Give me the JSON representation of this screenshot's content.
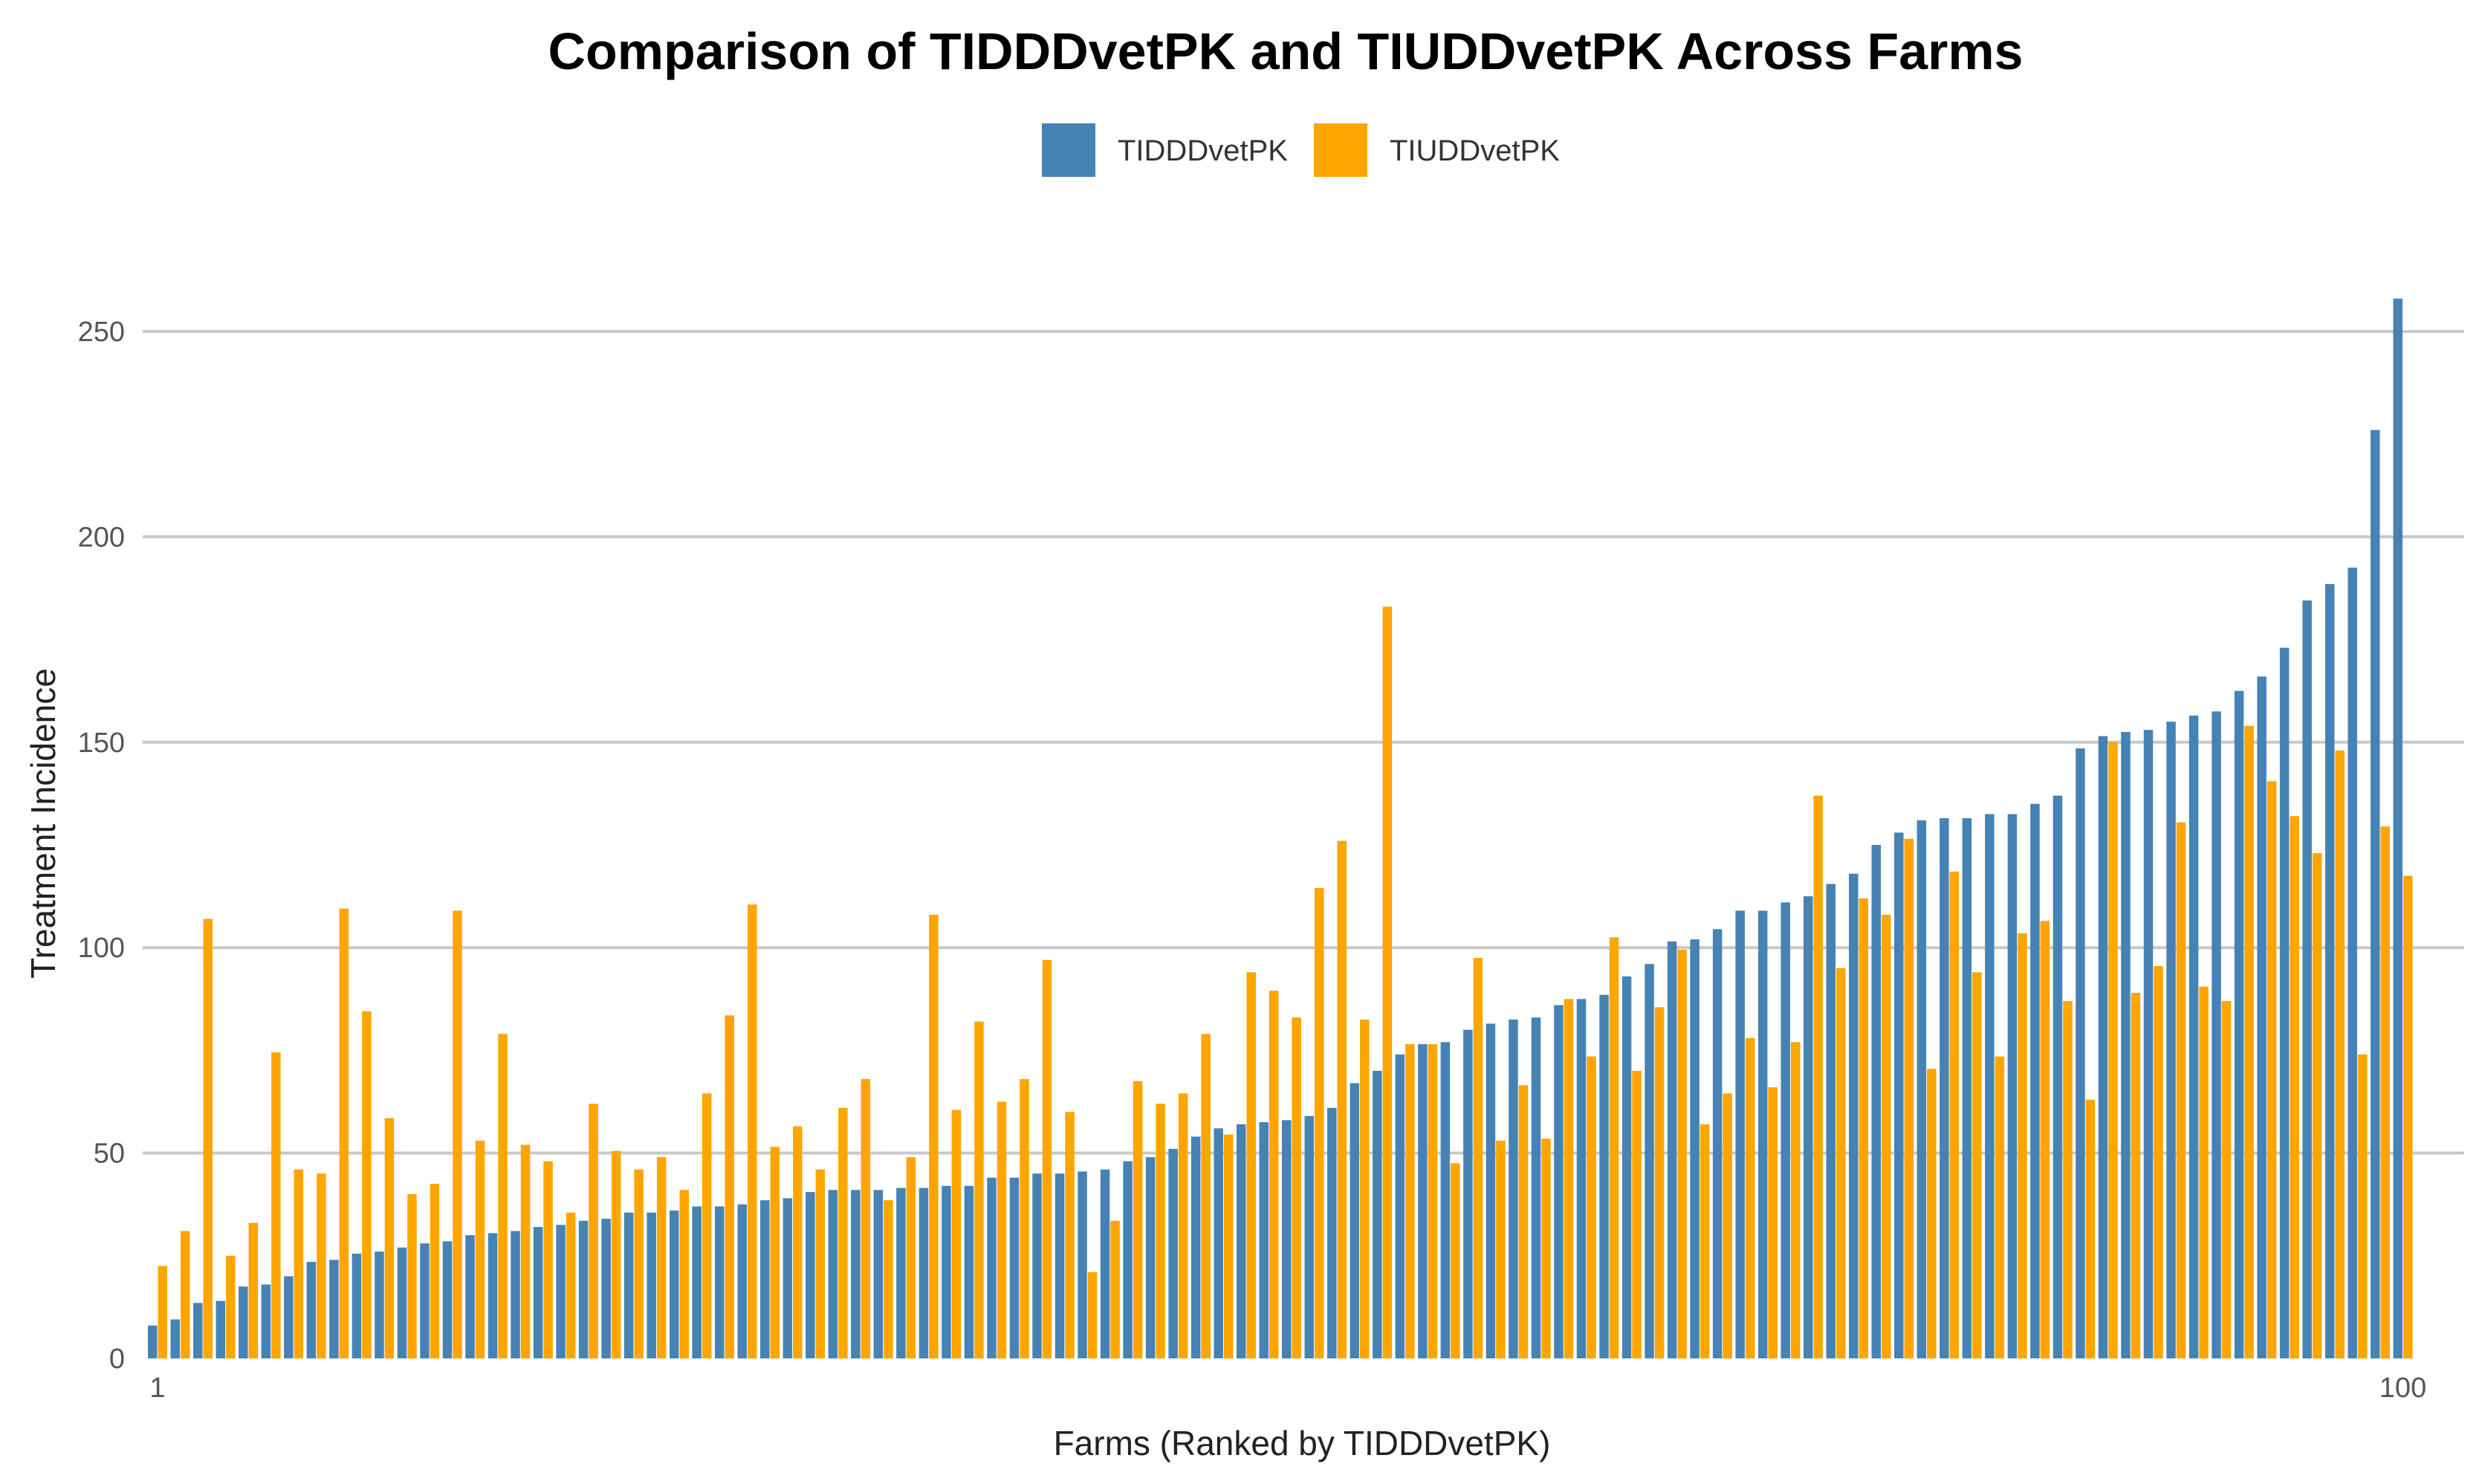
{
  "chart_data": {
    "type": "bar",
    "title": "Comparison of TIDDDvetPK and TIUDDvetPK Across Farms",
    "xlabel": "Farms (Ranked by TIDDDvetPK)",
    "ylabel": "Treatment Incidence",
    "ylim": [
      0,
      260
    ],
    "yticks": [
      0,
      50,
      100,
      150,
      200,
      250
    ],
    "xtick_labels": [
      {
        "index": 0,
        "label": "1"
      },
      {
        "index": 99,
        "label": "100"
      }
    ],
    "grid": "horizontal",
    "legend_position": "top-center",
    "colors": {
      "TIDDDvetPK": "#4682B4",
      "TIUDDvetPK": "#FFA500"
    },
    "series": [
      {
        "name": "TIDDDvetPK",
        "values": [
          8,
          9.5,
          13.5,
          14,
          17.5,
          18,
          20,
          23.5,
          24,
          25.5,
          26,
          27,
          28,
          28.5,
          30,
          30.5,
          31,
          32,
          32.5,
          33.5,
          34,
          35.5,
          35.5,
          36,
          37,
          37,
          37.5,
          38.5,
          39,
          40.5,
          41,
          41,
          41,
          41.5,
          41.5,
          42,
          42,
          44,
          44,
          45,
          45,
          45.5,
          46,
          48,
          49,
          51,
          54,
          56,
          57,
          57.5,
          58,
          59,
          61,
          67,
          70,
          74,
          76.5,
          77,
          80,
          81.5,
          82.5,
          83,
          86,
          87.5,
          88.5,
          93,
          96,
          101.5,
          102,
          104.5,
          109,
          109,
          111,
          112.5,
          115.5,
          118,
          125,
          128,
          131,
          131.5,
          131.5,
          132.5,
          132.5,
          135,
          137,
          148.5,
          151.5,
          152.5,
          153,
          155,
          156.5,
          157.5,
          162.5,
          166,
          173,
          184.5,
          188.5,
          192.5,
          226,
          258
        ]
      },
      {
        "name": "TIUDDvetPK",
        "values": [
          22.5,
          31,
          107,
          25,
          33,
          74.5,
          46,
          45,
          109.5,
          84.5,
          58.5,
          40,
          42.5,
          109,
          53,
          79,
          52,
          48,
          35.5,
          62,
          50.5,
          46,
          49,
          41,
          64.5,
          83.5,
          110.5,
          51.5,
          56.5,
          46,
          61,
          68,
          38.5,
          49,
          108,
          60.5,
          82,
          62.5,
          68,
          97,
          60,
          21,
          33.5,
          67.5,
          62,
          64.5,
          79,
          54.5,
          94,
          89.5,
          83,
          114.5,
          126,
          82.5,
          183,
          76.5,
          76.5,
          47.5,
          97.5,
          53,
          66.5,
          53.5,
          87.5,
          73.5,
          102.5,
          70,
          85.5,
          99.5,
          57,
          64.5,
          78,
          66,
          77,
          137,
          95,
          112,
          108,
          126.5,
          70.5,
          118.5,
          94,
          73.5,
          103.5,
          106.5,
          87,
          63,
          150,
          89,
          95.5,
          130.5,
          90.5,
          87,
          154,
          140.5,
          132,
          123,
          148,
          74,
          129.5,
          117.5
        ]
      }
    ]
  }
}
